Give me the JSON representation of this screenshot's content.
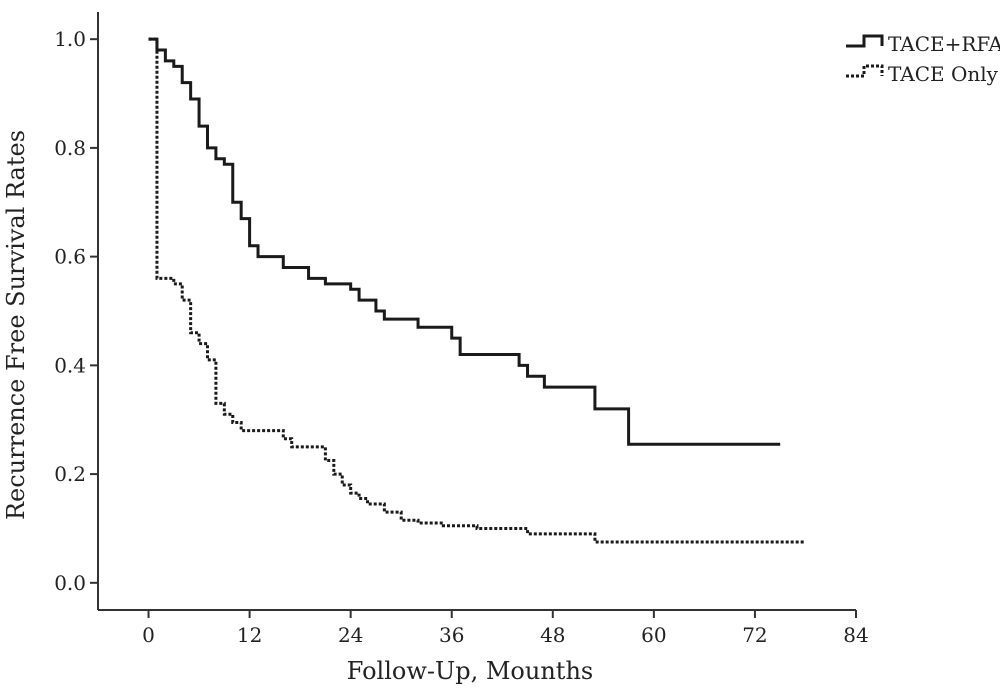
{
  "chart_data": {
    "type": "line",
    "step": true,
    "title": "",
    "xlabel": "Follow-Up, Mounths",
    "ylabel": "Recurrence Free Survival Rates",
    "xlim": [
      -6,
      84
    ],
    "ylim": [
      -0.05,
      1.05
    ],
    "xticks": [
      0,
      12,
      24,
      36,
      48,
      60,
      72,
      84
    ],
    "yticks": [
      0.0,
      0.2,
      0.4,
      0.6,
      0.8,
      1.0
    ],
    "xtick_labels": [
      "0",
      "12",
      "24",
      "36",
      "48",
      "60",
      "72",
      "84"
    ],
    "ytick_labels": [
      "0.0",
      "0.2",
      "0.4",
      "0.6",
      "0.8",
      "1.0"
    ],
    "grid": false,
    "legend_position": "top-right",
    "series": [
      {
        "name": "TACE+RFA",
        "style": "solid",
        "color": "#1a1a1a",
        "x": [
          0,
          1,
          2,
          3,
          4,
          5,
          6,
          7,
          8,
          9,
          10,
          11,
          12,
          13,
          16,
          19,
          21,
          24,
          25,
          27,
          28,
          32,
          36,
          37,
          44,
          45,
          47,
          53,
          57,
          75
        ],
        "y": [
          1.0,
          0.98,
          0.96,
          0.95,
          0.92,
          0.89,
          0.84,
          0.8,
          0.78,
          0.77,
          0.7,
          0.67,
          0.62,
          0.6,
          0.58,
          0.56,
          0.55,
          0.54,
          0.52,
          0.5,
          0.485,
          0.47,
          0.45,
          0.42,
          0.4,
          0.38,
          0.36,
          0.32,
          0.255,
          0.255
        ]
      },
      {
        "name": "TACE Only",
        "style": "dotted",
        "color": "#1a1a1a",
        "x": [
          0,
          1,
          3,
          4,
          5,
          6,
          7,
          8,
          9,
          10,
          11,
          16,
          17,
          21,
          22,
          23,
          24,
          25,
          26,
          28,
          30,
          32,
          35,
          39,
          45,
          53,
          78
        ],
        "y": [
          1.0,
          0.56,
          0.55,
          0.52,
          0.46,
          0.44,
          0.41,
          0.33,
          0.31,
          0.295,
          0.28,
          0.265,
          0.25,
          0.225,
          0.2,
          0.18,
          0.165,
          0.155,
          0.145,
          0.13,
          0.115,
          0.11,
          0.105,
          0.1,
          0.09,
          0.075,
          0.075
        ]
      }
    ]
  }
}
